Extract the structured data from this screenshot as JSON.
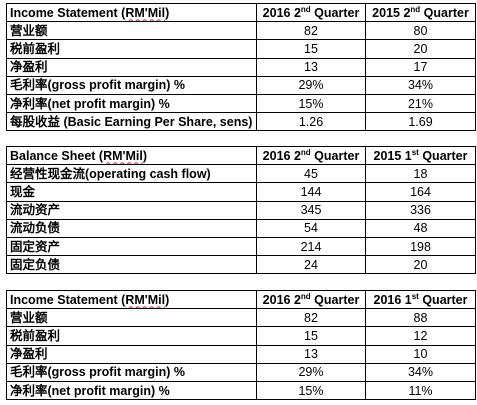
{
  "tables": [
    {
      "header": {
        "title_main": "Income Statement (",
        "title_unit": "RM'Mil",
        "title_close": ")",
        "col1_main": "2016 2",
        "col1_sup": "nd",
        "col1_tail": " Quarter",
        "col2_main": "2015 2",
        "col2_sup": "nd",
        "col2_tail": " Quarter"
      },
      "rows": [
        {
          "label": "营业额",
          "v1": "82",
          "v2": "80"
        },
        {
          "label": "税前盈利",
          "v1": "15",
          "v2": "20"
        },
        {
          "label": "净盈利",
          "v1": "13",
          "v2": "17"
        },
        {
          "label": "毛利率(gross profit margin) %",
          "v1": "29%",
          "v2": "34%"
        },
        {
          "label": "净利率(net profit margin) %",
          "v1": "15%",
          "v2": "21%"
        },
        {
          "label": "每股收益 (Basic Earning Per Share, sens)",
          "v1": "1.26",
          "v2": "1.69"
        }
      ]
    },
    {
      "header": {
        "title_main": "Balance Sheet (",
        "title_unit": "RM'Mil",
        "title_close": ")",
        "col1_main": "2016 2",
        "col1_sup": "nd",
        "col1_tail": " Quarter",
        "col2_main": "2015 1",
        "col2_sup": "st",
        "col2_tail": " Quarter"
      },
      "rows": [
        {
          "label": "经营性现金流(operating cash flow)",
          "v1": "45",
          "v2": "18"
        },
        {
          "label": "现金",
          "v1": "144",
          "v2": "164"
        },
        {
          "label": "流动资产",
          "v1": "345",
          "v2": "336"
        },
        {
          "label": "流动负债",
          "v1": "54",
          "v2": "48"
        },
        {
          "label": "固定资产",
          "v1": "214",
          "v2": "198"
        },
        {
          "label": "固定负债",
          "v1": "24",
          "v2": "20"
        }
      ]
    },
    {
      "header": {
        "title_main": "Income Statement (",
        "title_unit": "RM'Mil",
        "title_close": ")",
        "col1_main": "2016 2",
        "col1_sup": "nd",
        "col1_tail": " Quarter",
        "col2_main": "2016 1",
        "col2_sup": "st",
        "col2_tail": " Quarter"
      },
      "rows": [
        {
          "label": "营业额",
          "v1": "82",
          "v2": "88"
        },
        {
          "label": "税前盈利",
          "v1": "15",
          "v2": "12"
        },
        {
          "label": "净盈利",
          "v1": "13",
          "v2": "10"
        },
        {
          "label": "毛利率(gross profit margin) %",
          "v1": "29%",
          "v2": "34%"
        },
        {
          "label": "净利率(net profit margin) %",
          "v1": "15%",
          "v2": "11%"
        }
      ]
    }
  ]
}
